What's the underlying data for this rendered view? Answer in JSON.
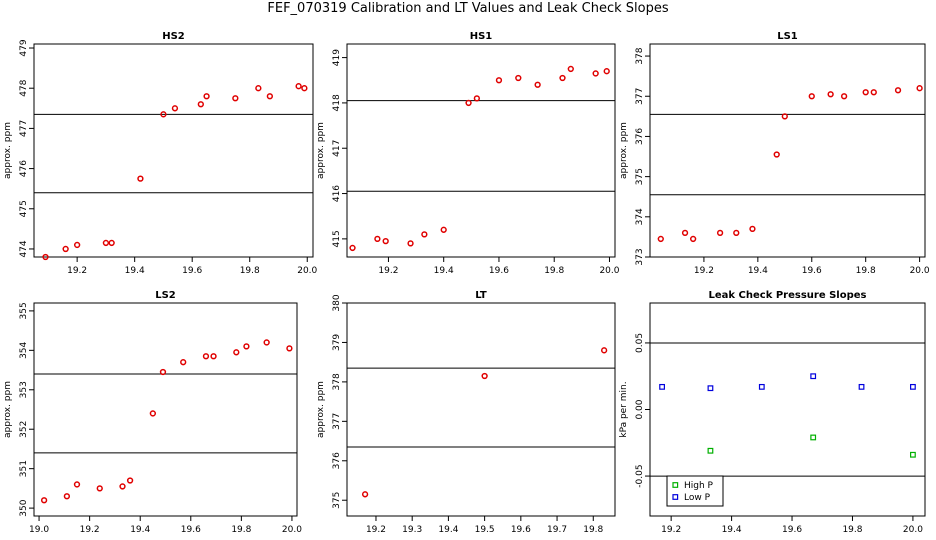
{
  "title": "FEF_070319  Calibration and LT Values and Leak Check Slopes",
  "colors": {
    "gas_points": "#e00000",
    "high_p": "#00b000",
    "low_p": "#0000dd",
    "axes": "#000000"
  },
  "chart_data": [
    {
      "type": "scatter",
      "title": "HS2",
      "ylabel": "approx. ppm",
      "xlim": [
        19.05,
        20.02
      ],
      "ylim": [
        473.8,
        479.1
      ],
      "xticks": [
        19.2,
        19.4,
        19.6,
        19.8,
        20.0
      ],
      "xtick_labels": [
        "19.2",
        "19.4",
        "19.6",
        "19.8",
        "20.0"
      ],
      "yticks": [
        474,
        475,
        476,
        477,
        478,
        479
      ],
      "ytick_labels": [
        "474",
        "475",
        "476",
        "477",
        "478",
        "479"
      ],
      "hlines": [
        477.35,
        475.4
      ],
      "points": [
        [
          19.09,
          473.8
        ],
        [
          19.16,
          474.0
        ],
        [
          19.2,
          474.1
        ],
        [
          19.3,
          474.15
        ],
        [
          19.32,
          474.15
        ],
        [
          19.42,
          475.75
        ],
        [
          19.5,
          477.35
        ],
        [
          19.54,
          477.5
        ],
        [
          19.63,
          477.6
        ],
        [
          19.65,
          477.8
        ],
        [
          19.75,
          477.75
        ],
        [
          19.83,
          478.0
        ],
        [
          19.87,
          477.8
        ],
        [
          19.97,
          478.05
        ],
        [
          19.99,
          478.0
        ]
      ]
    },
    {
      "type": "scatter",
      "title": "HS1",
      "ylabel": "approx. ppm",
      "xlim": [
        19.05,
        20.02
      ],
      "ylim": [
        414.6,
        419.3
      ],
      "xticks": [
        19.2,
        19.4,
        19.6,
        19.8,
        20.0
      ],
      "xtick_labels": [
        "19.2",
        "19.4",
        "19.6",
        "19.8",
        "20.0"
      ],
      "yticks": [
        415,
        416,
        417,
        418,
        419
      ],
      "ytick_labels": [
        "415",
        "416",
        "417",
        "418",
        "419"
      ],
      "hlines": [
        418.05,
        416.05
      ],
      "points": [
        [
          19.07,
          414.8
        ],
        [
          19.16,
          415.0
        ],
        [
          19.19,
          414.95
        ],
        [
          19.28,
          414.9
        ],
        [
          19.33,
          415.1
        ],
        [
          19.4,
          415.2
        ],
        [
          19.49,
          418.0
        ],
        [
          19.52,
          418.1
        ],
        [
          19.6,
          418.5
        ],
        [
          19.67,
          418.55
        ],
        [
          19.74,
          418.4
        ],
        [
          19.83,
          418.55
        ],
        [
          19.86,
          418.75
        ],
        [
          19.95,
          418.65
        ],
        [
          19.99,
          418.7
        ]
      ]
    },
    {
      "type": "scatter",
      "title": "LS1",
      "ylabel": "approx. ppm",
      "xlim": [
        19.0,
        20.02
      ],
      "ylim": [
        373.0,
        378.3
      ],
      "xticks": [
        19.2,
        19.4,
        19.6,
        19.8,
        20.0
      ],
      "xtick_labels": [
        "19.2",
        "19.4",
        "19.6",
        "19.8",
        "20.0"
      ],
      "yticks": [
        373,
        374,
        375,
        376,
        377,
        378
      ],
      "ytick_labels": [
        "373",
        "374",
        "375",
        "376",
        "377",
        "378"
      ],
      "hlines": [
        376.55,
        374.55
      ],
      "points": [
        [
          19.04,
          373.45
        ],
        [
          19.13,
          373.6
        ],
        [
          19.16,
          373.45
        ],
        [
          19.26,
          373.6
        ],
        [
          19.32,
          373.6
        ],
        [
          19.38,
          373.7
        ],
        [
          19.47,
          375.55
        ],
        [
          19.5,
          376.5
        ],
        [
          19.6,
          377.0
        ],
        [
          19.67,
          377.05
        ],
        [
          19.72,
          377.0
        ],
        [
          19.8,
          377.1
        ],
        [
          19.83,
          377.1
        ],
        [
          19.92,
          377.15
        ],
        [
          20.0,
          377.2
        ]
      ]
    },
    {
      "type": "scatter",
      "title": "LS2",
      "ylabel": "approx. ppm",
      "xlim": [
        18.98,
        20.02
      ],
      "ylim": [
        349.8,
        355.2
      ],
      "xticks": [
        19.0,
        19.2,
        19.4,
        19.6,
        19.8,
        20.0
      ],
      "xtick_labels": [
        "19.0",
        "19.2",
        "19.4",
        "19.6",
        "19.8",
        "20.0"
      ],
      "yticks": [
        350,
        351,
        352,
        353,
        354,
        355
      ],
      "ytick_labels": [
        "350",
        "351",
        "352",
        "353",
        "354",
        "355"
      ],
      "hlines": [
        353.4,
        351.4
      ],
      "points": [
        [
          19.02,
          350.2
        ],
        [
          19.11,
          350.3
        ],
        [
          19.15,
          350.6
        ],
        [
          19.24,
          350.5
        ],
        [
          19.33,
          350.55
        ],
        [
          19.36,
          350.7
        ],
        [
          19.45,
          352.4
        ],
        [
          19.49,
          353.45
        ],
        [
          19.57,
          353.7
        ],
        [
          19.66,
          353.85
        ],
        [
          19.69,
          353.85
        ],
        [
          19.78,
          353.95
        ],
        [
          19.82,
          354.1
        ],
        [
          19.9,
          354.2
        ],
        [
          19.99,
          354.05
        ]
      ]
    },
    {
      "type": "scatter",
      "title": "LT",
      "ylabel": "approx. ppm",
      "xlim": [
        19.12,
        19.86
      ],
      "ylim": [
        374.6,
        380.0
      ],
      "xticks": [
        19.2,
        19.3,
        19.4,
        19.5,
        19.6,
        19.7,
        19.8
      ],
      "xtick_labels": [
        "19.2",
        "19.3",
        "19.4",
        "19.5",
        "19.6",
        "19.7",
        "19.8"
      ],
      "yticks": [
        375,
        376,
        377,
        378,
        379,
        380
      ],
      "ytick_labels": [
        "375",
        "376",
        "377",
        "378",
        "379",
        "380"
      ],
      "hlines": [
        378.35,
        376.35
      ],
      "points": [
        [
          19.17,
          375.15
        ],
        [
          19.5,
          378.15
        ],
        [
          19.83,
          378.8
        ]
      ]
    },
    {
      "type": "scatter",
      "title": "Leak Check Pressure Slopes",
      "ylabel": "kPa per min.",
      "xlim": [
        19.13,
        20.04
      ],
      "ylim": [
        -0.08,
        0.08
      ],
      "xticks": [
        19.2,
        19.4,
        19.6,
        19.8,
        20.0
      ],
      "xtick_labels": [
        "19.2",
        "19.4",
        "19.6",
        "19.8",
        "20.0"
      ],
      "yticks": [
        -0.05,
        0.0,
        0.05
      ],
      "ytick_labels": [
        "-0.05",
        "0.00",
        "0.05"
      ],
      "hlines": [
        0.05,
        -0.05
      ],
      "legend": {
        "position": "bottom-left",
        "entries": [
          "High P",
          "Low P"
        ]
      },
      "series": [
        {
          "name": "High P",
          "points": [
            [
              19.33,
              -0.031
            ],
            [
              19.67,
              -0.021
            ],
            [
              20.0,
              -0.034
            ]
          ]
        },
        {
          "name": "Low P",
          "points": [
            [
              19.17,
              0.017
            ],
            [
              19.33,
              0.016
            ],
            [
              19.5,
              0.017
            ],
            [
              19.67,
              0.025
            ],
            [
              19.83,
              0.017
            ],
            [
              20.0,
              0.017
            ]
          ]
        }
      ]
    }
  ]
}
